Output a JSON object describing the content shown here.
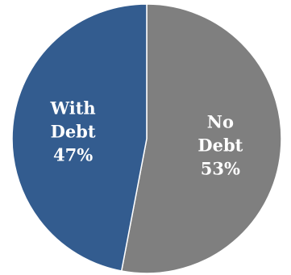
{
  "chart_data": {
    "type": "pie",
    "slices": [
      {
        "label_lines": [
          "No",
          "Debt",
          "53%"
        ],
        "value": 53,
        "color": "#7f7f7f"
      },
      {
        "label_lines": [
          "With",
          "Debt",
          "47%"
        ],
        "value": 47,
        "color": "#335c8f"
      }
    ],
    "start": "12 o'clock",
    "direction": "clockwise",
    "legend": "none"
  }
}
